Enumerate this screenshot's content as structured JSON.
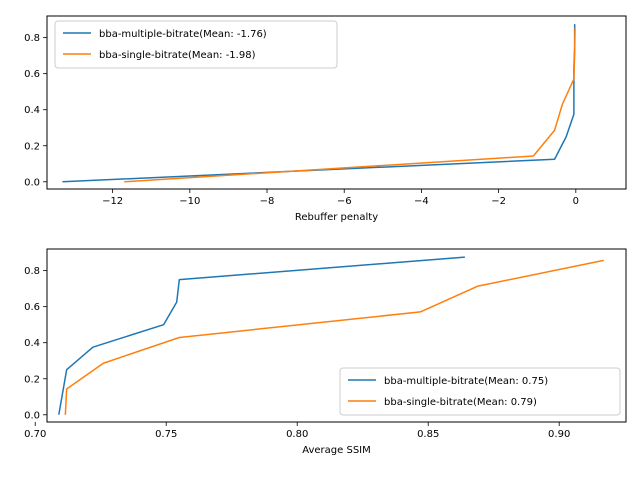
{
  "chart_data": [
    {
      "type": "line",
      "xlabel": "Rebuffer penalty",
      "ylabel": "",
      "xlim": [
        -13.7,
        1.3
      ],
      "ylim": [
        -0.04,
        0.92
      ],
      "xticks": [
        -12,
        -10,
        -8,
        -6,
        -4,
        -2,
        0
      ],
      "xtick_labels": [
        "−12",
        "−10",
        "−8",
        "−6",
        "−4",
        "−2",
        "0"
      ],
      "yticks": [
        0.0,
        0.2,
        0.4,
        0.6,
        0.8
      ],
      "ytick_labels": [
        "0.0",
        "0.2",
        "0.4",
        "0.6",
        "0.8"
      ],
      "legend_position": "upper-left",
      "grid": false,
      "series": [
        {
          "name": "bba-multiple-bitrate(Mean: -1.76)",
          "color": "#1f77b4",
          "x": [
            -13.3,
            -0.55,
            -0.25,
            -0.05,
            -0.05,
            -0.03,
            -0.03
          ],
          "y": [
            0.0,
            0.125,
            0.25,
            0.375,
            0.625,
            0.75,
            0.875
          ]
        },
        {
          "name": "bba-single-bitrate(Mean: -1.98)",
          "color": "#ff7f0e",
          "x": [
            -11.7,
            -1.1,
            -0.55,
            -0.35,
            -0.05,
            -0.03,
            -0.02
          ],
          "y": [
            0.0,
            0.143,
            0.286,
            0.429,
            0.571,
            0.714,
            0.857
          ]
        }
      ]
    },
    {
      "type": "line",
      "xlabel": "Average SSIM",
      "ylabel": "",
      "xlim": [
        0.7045,
        0.9255
      ],
      "ylim": [
        -0.04,
        0.92
      ],
      "xticks": [
        0.7,
        0.75,
        0.8,
        0.85,
        0.9
      ],
      "xtick_labels": [
        "0.70",
        "0.75",
        "0.80",
        "0.85",
        "0.90"
      ],
      "yticks": [
        0.0,
        0.2,
        0.4,
        0.6,
        0.8
      ],
      "ytick_labels": [
        "0.0",
        "0.2",
        "0.4",
        "0.6",
        "0.8"
      ],
      "legend_position": "lower-right",
      "grid": false,
      "series": [
        {
          "name": "bba-multiple-bitrate(Mean: 0.75)",
          "color": "#1f77b4",
          "x": [
            0.709,
            0.712,
            0.722,
            0.749,
            0.754,
            0.755,
            0.864
          ],
          "y": [
            0.0,
            0.25,
            0.375,
            0.5,
            0.625,
            0.75,
            0.875
          ]
        },
        {
          "name": "bba-single-bitrate(Mean: 0.79)",
          "color": "#ff7f0e",
          "x": [
            0.7115,
            0.712,
            0.726,
            0.755,
            0.847,
            0.869,
            0.917
          ],
          "y": [
            0.0,
            0.143,
            0.286,
            0.429,
            0.571,
            0.714,
            0.857
          ]
        }
      ]
    }
  ]
}
